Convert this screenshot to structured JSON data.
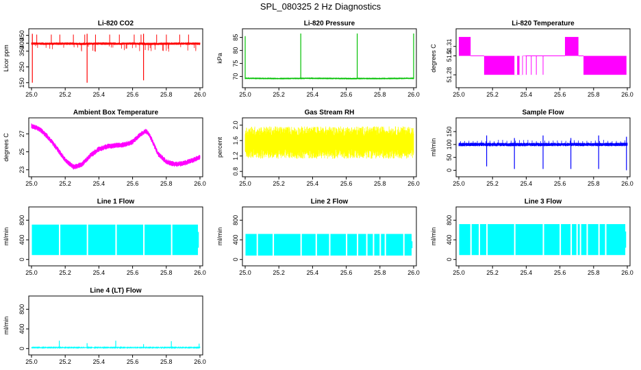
{
  "page": {
    "title": "SPL_080325  2 Hz Diagnostics"
  },
  "colors": {
    "red": "#ff0000",
    "green": "#00c000",
    "magenta": "#ff00ff",
    "yellow": "#ffff00",
    "blue": "#0000ff",
    "cyan": "#00ffff",
    "axis": "#000000"
  },
  "chart_data": [
    {
      "id": "co2",
      "type": "line",
      "title": "Li-820 CO2",
      "ylabel": "Licor ppm",
      "color": "#ff0000",
      "xlim": [
        25.0,
        26.0
      ],
      "ylim": [
        140,
        470
      ],
      "xticks": [
        "25.0",
        "25.2",
        "25.4",
        "25.6",
        "25.8",
        "26.0"
      ],
      "yticks": [
        150,
        250,
        350,
        400,
        450
      ],
      "ytick_labels": [
        "150",
        "250",
        "350",
        "400",
        "450"
      ],
      "style": "noisy",
      "series": {
        "x": [
          25.0,
          25.1,
          25.2,
          25.3,
          25.4,
          25.5,
          25.6,
          25.7,
          25.8,
          25.9,
          26.0
        ],
        "center": [
          398,
          397,
          398,
          396,
          398,
          397,
          398,
          396,
          397,
          398,
          397
        ],
        "band": [
          8,
          8,
          8,
          8,
          8,
          8,
          8,
          8,
          8,
          8,
          8
        ]
      },
      "spikes": [
        {
          "x": 25.005,
          "low": 150,
          "high": 460
        },
        {
          "x": 25.33,
          "low": 150,
          "high": 460
        },
        {
          "x": 25.665,
          "low": 165,
          "high": 460
        }
      ]
    },
    {
      "id": "pressure",
      "type": "line",
      "title": "Li-820 Pressure",
      "ylabel": "kPa",
      "color": "#00c000",
      "xlim": [
        25.0,
        26.0
      ],
      "ylim": [
        67,
        87
      ],
      "xticks": [
        "25.0",
        "25.2",
        "25.4",
        "25.6",
        "25.8",
        "26.0"
      ],
      "yticks": [
        70,
        75,
        80,
        85
      ],
      "ytick_labels": [
        "70",
        "75",
        "80",
        "85"
      ],
      "style": "noisy",
      "series": {
        "x": [
          25.0,
          25.2,
          25.4,
          25.6,
          25.8,
          26.0
        ],
        "center": [
          69.3,
          69.2,
          69.3,
          69.2,
          69.2,
          69.3
        ],
        "band": [
          0.3,
          0.3,
          0.3,
          0.3,
          0.3,
          0.3
        ]
      },
      "spikes": [
        {
          "x": 25.0,
          "low": 69.0,
          "high": 85.5
        },
        {
          "x": 25.33,
          "low": 69.0,
          "high": 86.5
        },
        {
          "x": 25.665,
          "low": 69.0,
          "high": 86.5
        },
        {
          "x": 26.0,
          "low": 69.0,
          "high": 86.5
        }
      ]
    },
    {
      "id": "temperature",
      "type": "line",
      "title": "Li-820 Temperature",
      "ylabel": "degrees C",
      "color": "#ff00ff",
      "xlim": [
        25.0,
        26.0
      ],
      "ylim": [
        51.27,
        51.325
      ],
      "xticks": [
        "25.0",
        "25.2",
        "25.4",
        "25.6",
        "25.8",
        "26.0"
      ],
      "yticks": [
        51.28,
        51.3,
        51.31
      ],
      "ytick_labels": [
        "51.28",
        "51.3",
        "51.31"
      ],
      "style": "digital",
      "levels": [
        51.28,
        51.3,
        51.32
      ],
      "segments": [
        {
          "from": 25.0,
          "to": 25.07,
          "low": 51.3,
          "high": 51.32
        },
        {
          "from": 25.07,
          "to": 25.15,
          "low": 51.3,
          "high": 51.3
        },
        {
          "from": 25.15,
          "to": 25.38,
          "low": 51.28,
          "high": 51.3
        },
        {
          "from": 25.38,
          "to": 25.63,
          "low": 51.3,
          "high": 51.3
        },
        {
          "from": 25.63,
          "to": 25.71,
          "low": 51.3,
          "high": 51.32
        },
        {
          "from": 25.71,
          "to": 25.74,
          "low": 51.3,
          "high": 51.3
        },
        {
          "from": 25.74,
          "to": 25.995,
          "low": 51.28,
          "high": 51.3
        }
      ]
    },
    {
      "id": "ambient",
      "type": "line",
      "title": "Ambient Box Temperature",
      "ylabel": "degrees C",
      "color": "#ff00ff",
      "xlim": [
        25.0,
        26.0
      ],
      "ylim": [
        22.6,
        28.4
      ],
      "xticks": [
        "25.0",
        "25.2",
        "25.4",
        "25.6",
        "25.8",
        "26.0"
      ],
      "yticks": [
        23,
        25,
        27
      ],
      "ytick_labels": [
        "23",
        "25",
        "27"
      ],
      "style": "noisy",
      "series": {
        "x": [
          25.0,
          25.05,
          25.1,
          25.15,
          25.2,
          25.25,
          25.3,
          25.35,
          25.4,
          25.45,
          25.5,
          25.55,
          25.6,
          25.65,
          25.68,
          25.7,
          25.75,
          25.8,
          25.85,
          25.9,
          25.95,
          26.0
        ],
        "center": [
          27.9,
          27.5,
          26.6,
          25.4,
          24.1,
          23.3,
          23.6,
          24.6,
          25.3,
          25.6,
          25.7,
          25.8,
          26.1,
          27.0,
          27.3,
          26.9,
          24.8,
          23.9,
          23.6,
          23.7,
          24.0,
          24.4
        ],
        "band": [
          0.3,
          0.3,
          0.3,
          0.3,
          0.3,
          0.3,
          0.3,
          0.3,
          0.3,
          0.3,
          0.3,
          0.3,
          0.3,
          0.3,
          0.3,
          0.3,
          0.3,
          0.3,
          0.3,
          0.3,
          0.3,
          0.3
        ]
      }
    },
    {
      "id": "rh",
      "type": "line",
      "title": "Gas Stream RH",
      "ylabel": "percent",
      "color": "#ffff00",
      "xlim": [
        25.0,
        26.0
      ],
      "ylim": [
        0.75,
        2.1
      ],
      "xticks": [
        "25.0",
        "25.2",
        "25.4",
        "25.6",
        "25.8",
        "26.0"
      ],
      "yticks": [
        0.8,
        1.2,
        1.6,
        2.0
      ],
      "ytick_labels": [
        "0.8",
        "1.2",
        "1.6",
        "2.0"
      ],
      "style": "noisy",
      "series": {
        "x": [
          25.0,
          26.0
        ],
        "center": [
          1.55,
          1.55
        ],
        "band": [
          0.42,
          0.42
        ]
      }
    },
    {
      "id": "sample",
      "type": "line",
      "title": "Sample Flow",
      "ylabel": "ml/min",
      "color": "#0000ff",
      "xlim": [
        25.0,
        26.0
      ],
      "ylim": [
        -12,
        190
      ],
      "xticks": [
        "25.0",
        "25.2",
        "25.4",
        "25.6",
        "25.8",
        "26.0"
      ],
      "yticks": [
        0,
        50,
        100,
        150
      ],
      "ytick_labels": [
        "0",
        "50",
        "100",
        "150"
      ],
      "style": "noisy",
      "series": {
        "x": [
          25.0,
          26.0
        ],
        "center": [
          100,
          100
        ],
        "band": [
          7,
          7
        ]
      },
      "spikes": [
        {
          "x": 25.165,
          "low": 15,
          "high": 135
        },
        {
          "x": 25.33,
          "low": 5,
          "high": 125
        },
        {
          "x": 25.5,
          "low": 5,
          "high": 135
        },
        {
          "x": 25.665,
          "low": 5,
          "high": 125
        },
        {
          "x": 25.83,
          "low": 5,
          "high": 135
        },
        {
          "x": 25.995,
          "low": 0,
          "high": 130
        }
      ]
    },
    {
      "id": "line1",
      "type": "area",
      "title": "Line 1 Flow",
      "ylabel": "ml/min",
      "color": "#00ffff",
      "xlim": [
        25.0,
        26.0
      ],
      "ylim": [
        -60,
        1000
      ],
      "xticks": [
        "25.0",
        "25.2",
        "25.4",
        "25.6",
        "25.8",
        "26.0"
      ],
      "yticks": [
        0,
        400,
        800
      ],
      "ytick_labels": [
        "0",
        "400",
        "800"
      ],
      "style": "band",
      "low": 90,
      "high": 710,
      "gaps": [
        25.165,
        25.33,
        25.5,
        25.665,
        25.83
      ],
      "end": 25.99
    },
    {
      "id": "line2",
      "type": "area",
      "title": "Line 2 Flow",
      "ylabel": "ml/min",
      "color": "#00ffff",
      "xlim": [
        25.0,
        26.0
      ],
      "ylim": [
        -60,
        1000
      ],
      "xticks": [
        "25.0",
        "25.2",
        "25.4",
        "25.6",
        "25.8",
        "26.0"
      ],
      "yticks": [
        0,
        400,
        800
      ],
      "ytick_labels": [
        "0",
        "400",
        "800"
      ],
      "style": "band",
      "low": 80,
      "high": 520,
      "gaps": [
        25.07,
        25.165,
        25.33,
        25.42,
        25.5,
        25.6,
        25.665,
        25.72,
        25.76,
        25.8,
        25.83,
        25.94
      ],
      "end": 25.99
    },
    {
      "id": "line3",
      "type": "area",
      "title": "Line 3 Flow",
      "ylabel": "ml/min",
      "color": "#00ffff",
      "xlim": [
        25.0,
        26.0
      ],
      "ylim": [
        -60,
        1000
      ],
      "xticks": [
        "25.0",
        "25.2",
        "25.4",
        "25.6",
        "25.8",
        "26.0"
      ],
      "yticks": [
        0,
        400,
        800
      ],
      "ytick_labels": [
        "0",
        "400",
        "800"
      ],
      "style": "band",
      "low": 90,
      "high": 720,
      "gaps": [
        25.07,
        25.12,
        25.165,
        25.33,
        25.5,
        25.6,
        25.665,
        25.7,
        25.72,
        25.76,
        25.83,
        25.87
      ],
      "end": 25.99
    },
    {
      "id": "line4",
      "type": "line",
      "title": "Line 4 (LT) Flow",
      "ylabel": "ml/min",
      "color": "#00ffff",
      "xlim": [
        25.0,
        26.0
      ],
      "ylim": [
        -60,
        1000
      ],
      "xticks": [
        "25.0",
        "25.2",
        "25.4",
        "25.6",
        "25.8",
        "26.0"
      ],
      "yticks": [
        0,
        400,
        800
      ],
      "ytick_labels": [
        "0",
        "400",
        "800"
      ],
      "style": "noisy",
      "series": {
        "x": [
          25.0,
          26.0
        ],
        "center": [
          20,
          20
        ],
        "band": [
          6,
          6
        ]
      },
      "spikes": [
        {
          "x": 25.165,
          "low": 20,
          "high": 160
        },
        {
          "x": 25.33,
          "low": 20,
          "high": 110
        },
        {
          "x": 25.5,
          "low": 20,
          "high": 160
        },
        {
          "x": 25.665,
          "low": 20,
          "high": 90
        },
        {
          "x": 25.83,
          "low": 20,
          "high": 150
        },
        {
          "x": 25.995,
          "low": 20,
          "high": 100
        }
      ]
    }
  ]
}
